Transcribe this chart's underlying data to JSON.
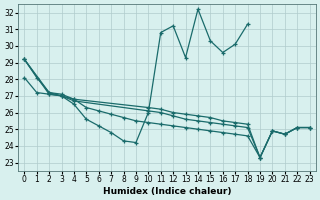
{
  "xlabel": "Humidex (Indice chaleur)",
  "background_color": "#d8f0ee",
  "grid_color": "#b0cccc",
  "line_color": "#1a6b6b",
  "xlim": [
    -0.5,
    23.5
  ],
  "ylim": [
    22.5,
    32.5
  ],
  "xticks": [
    0,
    1,
    2,
    3,
    4,
    5,
    6,
    7,
    8,
    9,
    10,
    11,
    12,
    13,
    14,
    15,
    16,
    17,
    18,
    19,
    20,
    21,
    22,
    23
  ],
  "yticks": [
    23,
    24,
    25,
    26,
    27,
    28,
    29,
    30,
    31,
    32
  ],
  "line1": {
    "x": [
      0,
      1,
      2,
      3,
      4,
      5,
      6,
      7,
      8,
      9,
      10,
      11,
      12,
      13,
      14,
      15,
      16,
      17,
      18
    ],
    "y": [
      29.2,
      28.1,
      27.2,
      27.0,
      26.5,
      25.6,
      25.2,
      24.8,
      24.3,
      24.2,
      26.0,
      30.8,
      31.2,
      29.3,
      32.2,
      30.3,
      29.6,
      30.1,
      31.3
    ]
  },
  "line2": {
    "x": [
      0,
      2,
      3,
      4,
      10,
      11,
      12,
      13,
      14,
      15,
      16,
      17,
      18,
      19,
      20,
      21,
      22,
      23
    ],
    "y": [
      29.2,
      27.2,
      27.1,
      26.8,
      26.3,
      26.2,
      26.0,
      25.9,
      25.8,
      25.7,
      25.5,
      25.4,
      25.3,
      23.3,
      24.9,
      24.7,
      25.1,
      25.1
    ]
  },
  "line3": {
    "x": [
      0,
      2,
      3,
      4,
      10,
      11,
      12,
      13,
      14,
      15,
      16,
      17,
      18,
      19,
      20,
      21,
      22,
      23
    ],
    "y": [
      29.2,
      27.1,
      27.0,
      26.7,
      26.1,
      26.0,
      25.8,
      25.6,
      25.5,
      25.4,
      25.3,
      25.2,
      25.1,
      23.3,
      24.9,
      24.7,
      25.1,
      25.1
    ]
  },
  "line4": {
    "x": [
      0,
      1,
      2,
      3,
      4,
      5,
      6,
      7,
      8,
      9,
      10,
      11,
      12,
      13,
      14,
      15,
      16,
      17,
      18,
      19,
      20,
      21,
      22,
      23
    ],
    "y": [
      28.1,
      27.2,
      27.1,
      27.0,
      26.8,
      26.3,
      26.1,
      25.9,
      25.7,
      25.5,
      25.4,
      25.3,
      25.2,
      25.1,
      25.0,
      24.9,
      24.8,
      24.7,
      24.6,
      23.3,
      24.9,
      24.7,
      25.1,
      25.1
    ]
  }
}
